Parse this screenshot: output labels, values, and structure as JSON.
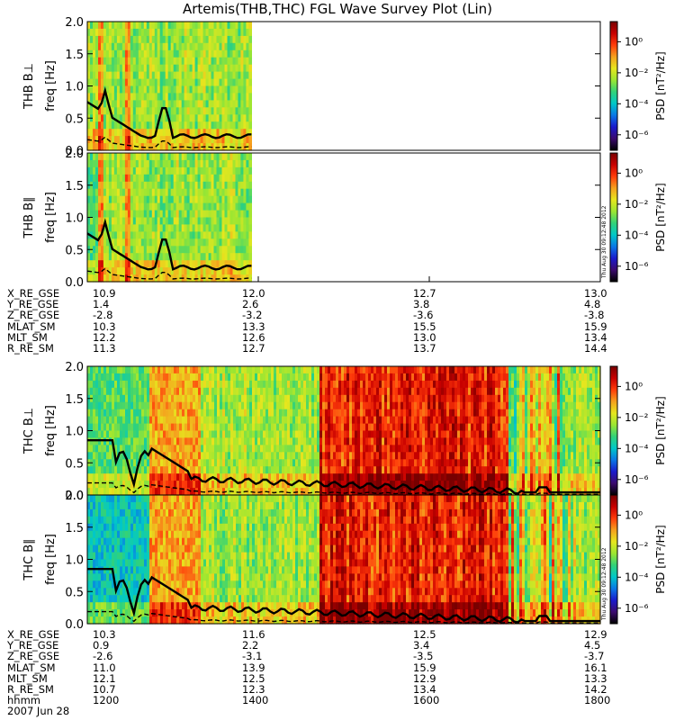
{
  "title": "Artemis(THB,THC) FGL Wave Survey Plot (Lin)",
  "stamp": "Thu Aug 30 09:12:48 2012",
  "colorbar": {
    "label": "PSD [nT²/Hz]",
    "ticks": [
      "10⁰",
      "10⁻²",
      "10⁻⁴",
      "10⁻⁶"
    ],
    "tick_exponents": [
      0,
      -2,
      -4,
      -6
    ],
    "range_exponent": [
      -7,
      1.3
    ],
    "colors": [
      "#000000",
      "#3b0a6e",
      "#1a1acc",
      "#0a78e6",
      "#00c8c8",
      "#32d278",
      "#9be632",
      "#e6e61e",
      "#f5a01e",
      "#ff3c0a",
      "#c80000",
      "#780000"
    ]
  },
  "chart_data": [
    {
      "type": "heatmap",
      "panel": "THB B⊥",
      "ylabel_1": "THB B⊥",
      "ylabel_2": "freq [Hz]",
      "yticks": [
        "0.0",
        "0.5",
        "1.0",
        "1.5",
        "2.0"
      ],
      "ylim": [
        0,
        2.0
      ],
      "data_time_range": [
        0.0,
        0.32
      ]
    },
    {
      "type": "heatmap",
      "panel": "THB B∥",
      "ylabel_1": "THB B∥",
      "ylabel_2": "freq [Hz]",
      "yticks": [
        "0.0",
        "0.5",
        "1.0",
        "1.5",
        "2.0"
      ],
      "ylim": [
        0,
        2.0
      ],
      "data_time_range": [
        0.0,
        0.32
      ]
    },
    {
      "type": "heatmap",
      "panel": "THC B⊥",
      "ylabel_1": "THC B⊥",
      "ylabel_2": "freq [Hz]",
      "yticks": [
        "0.0",
        "0.5",
        "1.0",
        "1.5",
        "2.0"
      ],
      "ylim": [
        0,
        2.0
      ],
      "data_time_range": [
        0.0,
        1.0
      ]
    },
    {
      "type": "heatmap",
      "panel": "THC B∥",
      "ylabel_1": "THC B∥",
      "ylabel_2": "freq [Hz]",
      "yticks": [
        "0.0",
        "0.5",
        "1.0",
        "1.5",
        "2.0"
      ],
      "ylim": [
        0,
        2.0
      ],
      "data_time_range": [
        0.0,
        1.0
      ]
    }
  ],
  "ephemeris_thb": {
    "rows": [
      {
        "label": "X_RE_GSE",
        "values": [
          "10.9",
          "12.0",
          "12.7",
          "13.0"
        ]
      },
      {
        "label": "Y_RE_GSE",
        "values": [
          "1.4",
          "2.6",
          "3.8",
          "4.8"
        ]
      },
      {
        "label": "Z_RE_GSE",
        "values": [
          "-2.8",
          "-3.2",
          "-3.6",
          "-3.8"
        ]
      },
      {
        "label": "MLAT_SM",
        "values": [
          "10.3",
          "13.3",
          "15.5",
          "15.9"
        ]
      },
      {
        "label": "MLT_SM",
        "values": [
          "12.2",
          "12.6",
          "13.0",
          "13.4"
        ]
      },
      {
        "label": "R_RE_SM",
        "values": [
          "11.3",
          "12.7",
          "13.7",
          "14.4"
        ]
      }
    ]
  },
  "ephemeris_thc": {
    "rows": [
      {
        "label": "X_RE_GSE",
        "values": [
          "10.3",
          "11.6",
          "12.5",
          "12.9"
        ]
      },
      {
        "label": "Y_RE_GSE",
        "values": [
          "0.9",
          "2.2",
          "3.4",
          "4.5"
        ]
      },
      {
        "label": "Z_RE_GSE",
        "values": [
          "-2.6",
          "-3.1",
          "-3.5",
          "-3.7"
        ]
      },
      {
        "label": "MLAT_SM",
        "values": [
          "11.0",
          "13.9",
          "15.9",
          "16.1"
        ]
      },
      {
        "label": "MLT_SM",
        "values": [
          "12.1",
          "12.5",
          "12.9",
          "13.3"
        ]
      },
      {
        "label": "R_RE_SM",
        "values": [
          "10.7",
          "12.3",
          "13.4",
          "14.2"
        ]
      },
      {
        "label": "hhmm",
        "values": [
          "1200",
          "1400",
          "1600",
          "1800"
        ]
      }
    ],
    "date": "2007 Jun 28"
  }
}
